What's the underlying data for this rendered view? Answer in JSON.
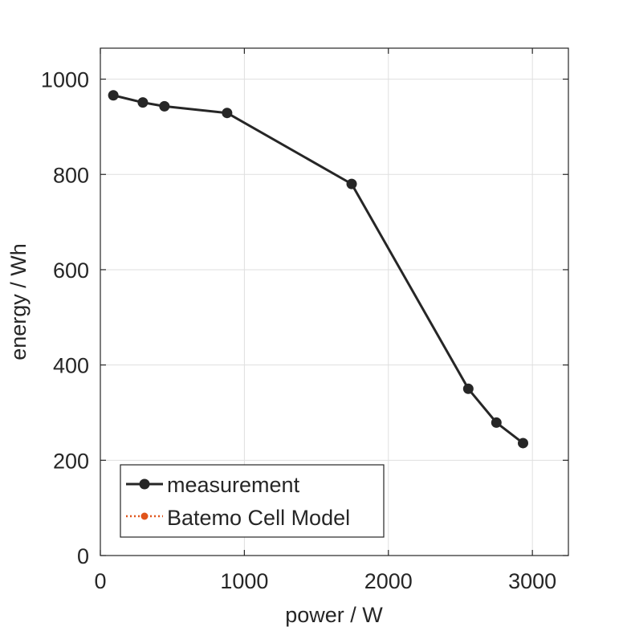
{
  "chart_data": {
    "type": "line",
    "title": "",
    "xlabel": "power / W",
    "ylabel": "energy / Wh",
    "xlim": [
      0,
      3250
    ],
    "ylim": [
      0,
      1065
    ],
    "xticks": [
      0,
      1000,
      2000,
      3000
    ],
    "yticks": [
      0,
      200,
      400,
      600,
      800,
      1000
    ],
    "xtick_labels": [
      "0",
      "1000",
      "2000",
      "3000"
    ],
    "ytick_labels": [
      "0",
      "200",
      "400",
      "600",
      "800",
      "1000"
    ],
    "grid": true,
    "legend_position": "bottom-left",
    "series": [
      {
        "name": "measurement",
        "color": "#262626",
        "style": "solid",
        "marker": "circle",
        "x": [
          90,
          295,
          445,
          880,
          1745,
          2555,
          2750,
          2935
        ],
        "y": [
          966,
          951,
          943,
          929,
          780,
          350,
          279,
          236
        ]
      },
      {
        "name": "Batemo Cell Model",
        "color": "#e0541a",
        "style": "dotted",
        "marker": "circle",
        "x": [],
        "y": []
      }
    ]
  }
}
